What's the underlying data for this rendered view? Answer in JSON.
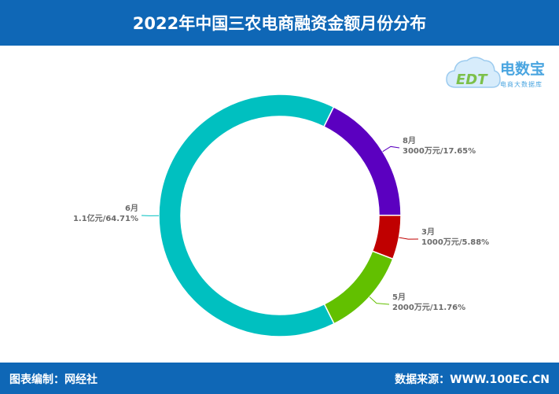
{
  "header": {
    "title": "2022年中国三农电商融资金额月份分布"
  },
  "logo": {
    "name": "电数宝",
    "sub": "电商大数据库",
    "mark": "EDT"
  },
  "footer": {
    "left": "图表编制：网经社",
    "right": "数据来源：WWW.100EC.CN"
  },
  "chart_data": {
    "type": "pie",
    "donut": true,
    "title": "2022年中国三农电商融资金额月份分布",
    "slices": [
      {
        "name": "8月",
        "value_label": "3000万元/17.65%",
        "value": 3000,
        "percent": 17.65,
        "color": "#5b00c0"
      },
      {
        "name": "3月",
        "value_label": "1000万元/5.88%",
        "value": 1000,
        "percent": 5.88,
        "color": "#c00000"
      },
      {
        "name": "5月",
        "value_label": "2000万元/11.76%",
        "value": 2000,
        "percent": 11.76,
        "color": "#62c000"
      },
      {
        "name": "6月",
        "value_label": "1.1亿元/64.71%",
        "value": 11000,
        "percent": 64.71,
        "color": "#00c0c0"
      }
    ]
  }
}
